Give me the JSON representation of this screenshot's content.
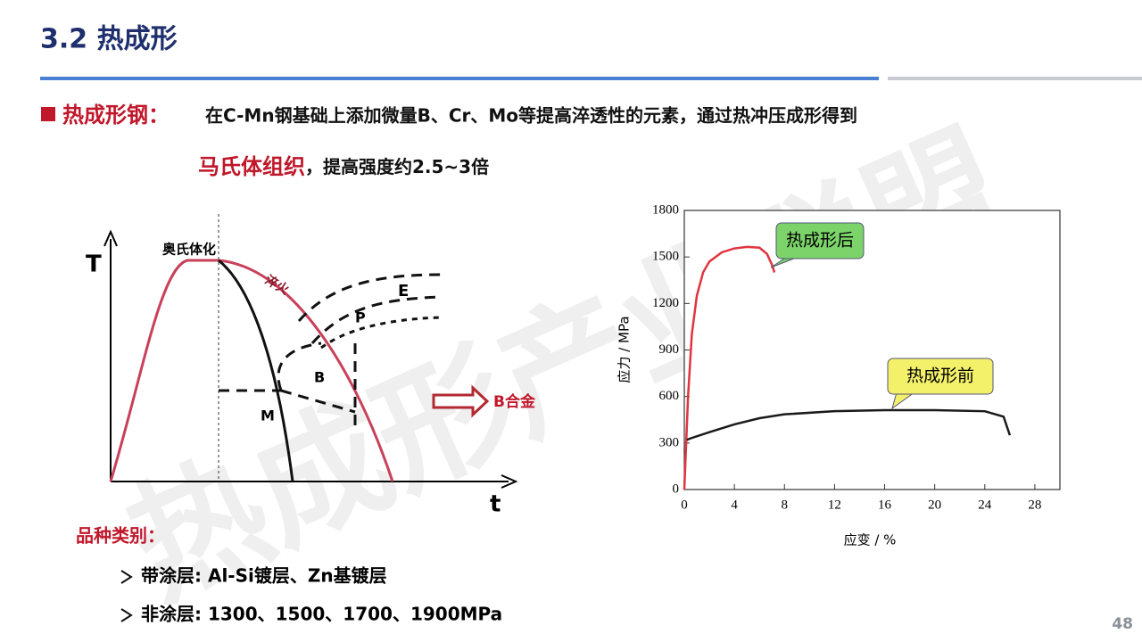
{
  "header": {
    "title": "3.2 热成形"
  },
  "intro": {
    "label": "热成形钢：",
    "text": "在C-Mn钢基础上添加微量B、Cr、Mo等提高淬透性的元素，通过热冲压成形得到",
    "highlight": "马氏体组织",
    "rest": "，提高强度约2.5~3倍"
  },
  "diagram": {
    "y_axis": "T",
    "x_axis": "t",
    "austenitize": "奥氏体化",
    "quench": "淬火",
    "regions": [
      "E",
      "P",
      "B",
      "M"
    ],
    "arrow_label": "B合金"
  },
  "chart_data": {
    "type": "line",
    "xlabel": "应变 / %",
    "ylabel": "应力 / MPa",
    "xlim": [
      0,
      30
    ],
    "ylim": [
      0,
      1800
    ],
    "xticks": [
      0,
      4,
      8,
      12,
      16,
      20,
      24,
      28
    ],
    "yticks": [
      0,
      300,
      600,
      900,
      1200,
      1500,
      1800
    ],
    "series": [
      {
        "name": "热成形后",
        "color": "#e0343f",
        "x": [
          0,
          0.3,
          0.6,
          1,
          1.5,
          2,
          3,
          4,
          5,
          6,
          6.6,
          7,
          7.2
        ],
        "values": [
          0,
          600,
          1000,
          1250,
          1400,
          1470,
          1530,
          1555,
          1565,
          1560,
          1520,
          1450,
          1400
        ]
      },
      {
        "name": "热成形前",
        "color": "#1a1a1a",
        "x": [
          0.2,
          0.5,
          2,
          4,
          6,
          8,
          12,
          16,
          20,
          24,
          25.5,
          26
        ],
        "values": [
          320,
          330,
          370,
          420,
          460,
          485,
          505,
          512,
          512,
          505,
          470,
          350
        ]
      }
    ]
  },
  "categories": {
    "title": "品种类别：",
    "items": [
      "带涂层: Al-Si镀层、Zn基镀层",
      "非涂层: 1300、1500、1700、1900MPa"
    ]
  },
  "watermark": "热成形产业联盟",
  "page_number": "48"
}
